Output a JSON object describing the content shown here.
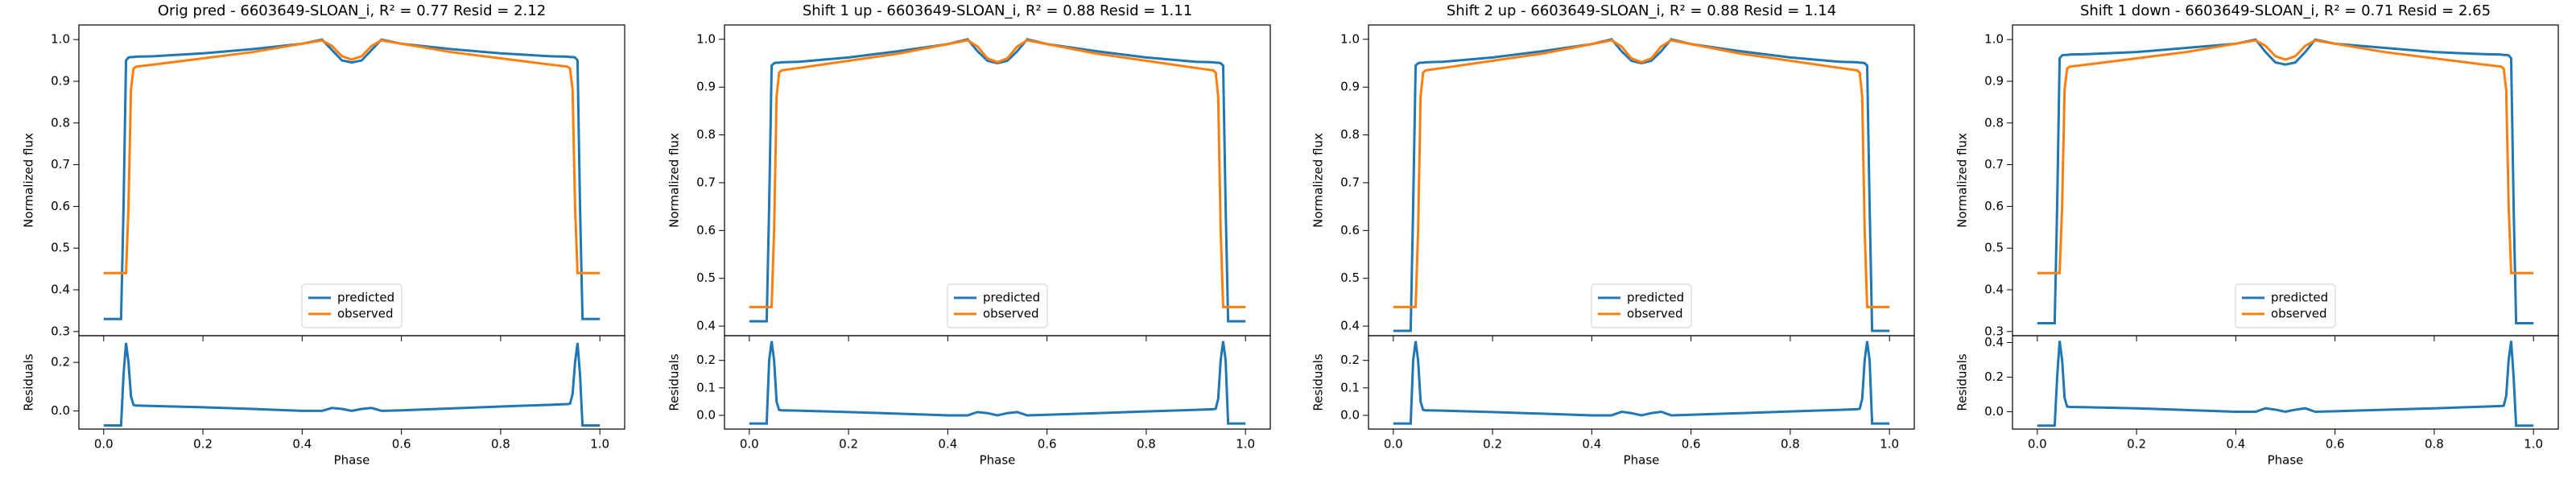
{
  "chart_data": [
    {
      "type": "line",
      "title": "Orig pred - 6603649-SLOAN_i, R² = 0.77 Resid = 2.12",
      "xlabel": "Phase",
      "x": [
        0,
        0.035,
        0.04,
        0.045,
        0.05,
        0.055,
        0.06,
        0.065,
        0.1,
        0.2,
        0.3,
        0.4,
        0.44,
        0.46,
        0.48,
        0.5,
        0.52,
        0.54,
        0.56,
        0.6,
        0.7,
        0.8,
        0.9,
        0.935,
        0.94,
        0.945,
        0.95,
        0.955,
        0.96,
        0.965,
        1.0
      ],
      "xlim": [
        -0.05,
        1.05
      ],
      "xticks": [
        {
          "value": 0,
          "label": "0.0"
        },
        {
          "value": 0.2,
          "label": "0.2"
        },
        {
          "value": 0.4,
          "label": "0.4"
        },
        {
          "value": 0.6,
          "label": "0.6"
        },
        {
          "value": 0.8,
          "label": "0.8"
        },
        {
          "value": 1,
          "label": "1.0"
        }
      ],
      "main": {
        "ylabel": "Normalized flux",
        "ylim": [
          0.29,
          1.035
        ],
        "legend": "lower center",
        "yticks": [
          {
            "value": 0.3,
            "label": "0.3"
          },
          {
            "value": 0.4,
            "label": "0.4"
          },
          {
            "value": 0.5,
            "label": "0.5"
          },
          {
            "value": 0.6,
            "label": "0.6"
          },
          {
            "value": 0.7,
            "label": "0.7"
          },
          {
            "value": 0.8,
            "label": "0.8"
          },
          {
            "value": 0.9,
            "label": "0.9"
          },
          {
            "value": 1,
            "label": "1.0"
          }
        ],
        "series": [
          {
            "name": "predicted",
            "color": "#1f77b4",
            "values": [
              0.33,
              0.33,
              0.6,
              0.95,
              0.957,
              0.958,
              0.958,
              0.959,
              0.96,
              0.967,
              0.977,
              0.99,
              1.0,
              0.975,
              0.95,
              0.945,
              0.95,
              0.975,
              1.0,
              0.99,
              0.977,
              0.967,
              0.96,
              0.959,
              0.958,
              0.958,
              0.957,
              0.95,
              0.6,
              0.33,
              0.33
            ]
          },
          {
            "name": "observed",
            "color": "#ff7f0e",
            "values": [
              0.44,
              0.44,
              0.44,
              0.44,
              0.6,
              0.88,
              0.93,
              0.935,
              0.94,
              0.955,
              0.97,
              0.99,
              0.998,
              0.985,
              0.96,
              0.952,
              0.96,
              0.985,
              0.998,
              0.99,
              0.97,
              0.955,
              0.94,
              0.935,
              0.93,
              0.88,
              0.6,
              0.44,
              0.44,
              0.44,
              0.44
            ]
          }
        ]
      },
      "resid": {
        "ylabel": "Residuals",
        "ylim": [
          -0.075,
          0.31
        ],
        "yticks": [
          {
            "value": 0,
            "label": "0.0"
          },
          {
            "value": 0.2,
            "label": "0.2"
          }
        ],
        "series": [
          {
            "color": "#1f77b4",
            "values": [
              -0.06,
              -0.06,
              0.15,
              0.28,
              0.2,
              0.06,
              0.025,
              0.022,
              0.02,
              0.015,
              0.008,
              0,
              0,
              0.012,
              0.008,
              0,
              0.008,
              0.012,
              0,
              0.002,
              0.01,
              0.018,
              0.025,
              0.028,
              0.03,
              0.07,
              0.2,
              0.28,
              0.15,
              -0.06,
              -0.06
            ]
          }
        ]
      }
    },
    {
      "type": "line",
      "title": "Shift 1 up - 6603649-SLOAN_i, R² = 0.88 Resid = 1.11",
      "xlabel": "Phase",
      "x": [
        0,
        0.035,
        0.04,
        0.045,
        0.05,
        0.055,
        0.06,
        0.065,
        0.1,
        0.2,
        0.3,
        0.4,
        0.44,
        0.46,
        0.48,
        0.5,
        0.52,
        0.54,
        0.56,
        0.6,
        0.7,
        0.8,
        0.9,
        0.935,
        0.94,
        0.945,
        0.95,
        0.955,
        0.96,
        0.965,
        1.0
      ],
      "xlim": [
        -0.05,
        1.05
      ],
      "xticks": [
        {
          "value": 0,
          "label": "0.0"
        },
        {
          "value": 0.2,
          "label": "0.2"
        },
        {
          "value": 0.4,
          "label": "0.4"
        },
        {
          "value": 0.6,
          "label": "0.6"
        },
        {
          "value": 0.8,
          "label": "0.8"
        },
        {
          "value": 1,
          "label": "1.0"
        }
      ],
      "main": {
        "ylabel": "Normalized flux",
        "ylim": [
          0.38,
          1.03
        ],
        "legend": "lower center",
        "yticks": [
          {
            "value": 0.4,
            "label": "0.4"
          },
          {
            "value": 0.5,
            "label": "0.5"
          },
          {
            "value": 0.6,
            "label": "0.6"
          },
          {
            "value": 0.7,
            "label": "0.7"
          },
          {
            "value": 0.8,
            "label": "0.8"
          },
          {
            "value": 0.9,
            "label": "0.9"
          },
          {
            "value": 1,
            "label": "1.0"
          }
        ],
        "series": [
          {
            "name": "predicted",
            "color": "#1f77b4",
            "values": [
              0.41,
              0.41,
              0.65,
              0.945,
              0.95,
              0.951,
              0.951,
              0.952,
              0.953,
              0.962,
              0.975,
              0.99,
              1.0,
              0.975,
              0.955,
              0.95,
              0.955,
              0.975,
              1.0,
              0.99,
              0.975,
              0.962,
              0.953,
              0.952,
              0.951,
              0.951,
              0.95,
              0.945,
              0.65,
              0.41,
              0.41
            ]
          },
          {
            "name": "observed",
            "color": "#ff7f0e",
            "values": [
              0.44,
              0.44,
              0.44,
              0.44,
              0.6,
              0.88,
              0.93,
              0.935,
              0.94,
              0.955,
              0.97,
              0.99,
              0.998,
              0.985,
              0.96,
              0.952,
              0.96,
              0.985,
              0.998,
              0.99,
              0.97,
              0.955,
              0.94,
              0.935,
              0.93,
              0.88,
              0.6,
              0.44,
              0.44,
              0.44,
              0.44
            ]
          }
        ]
      },
      "resid": {
        "ylabel": "Residuals",
        "ylim": [
          -0.05,
          0.29
        ],
        "yticks": [
          {
            "value": 0,
            "label": "0.0"
          },
          {
            "value": 0.1,
            "label": "0.1"
          },
          {
            "value": 0.2,
            "label": "0.2"
          }
        ],
        "series": [
          {
            "color": "#1f77b4",
            "values": [
              -0.03,
              -0.03,
              0.2,
              0.27,
              0.2,
              0.05,
              0.02,
              0.018,
              0.017,
              0.012,
              0.006,
              0,
              0,
              0.012,
              0.008,
              0,
              0.008,
              0.012,
              0,
              0.002,
              0.008,
              0.014,
              0.02,
              0.022,
              0.024,
              0.06,
              0.2,
              0.27,
              0.2,
              -0.03,
              -0.03
            ]
          }
        ]
      }
    },
    {
      "type": "line",
      "title": "Shift 2 up - 6603649-SLOAN_i, R² = 0.88 Resid = 1.14",
      "xlabel": "Phase",
      "x": [
        0,
        0.035,
        0.04,
        0.045,
        0.05,
        0.055,
        0.06,
        0.065,
        0.1,
        0.2,
        0.3,
        0.4,
        0.44,
        0.46,
        0.48,
        0.5,
        0.52,
        0.54,
        0.56,
        0.6,
        0.7,
        0.8,
        0.9,
        0.935,
        0.94,
        0.945,
        0.95,
        0.955,
        0.96,
        0.965,
        1.0
      ],
      "xlim": [
        -0.05,
        1.05
      ],
      "xticks": [
        {
          "value": 0,
          "label": "0.0"
        },
        {
          "value": 0.2,
          "label": "0.2"
        },
        {
          "value": 0.4,
          "label": "0.4"
        },
        {
          "value": 0.6,
          "label": "0.6"
        },
        {
          "value": 0.8,
          "label": "0.8"
        },
        {
          "value": 1,
          "label": "1.0"
        }
      ],
      "main": {
        "ylabel": "Normalized flux",
        "ylim": [
          0.38,
          1.03
        ],
        "legend": "lower center",
        "yticks": [
          {
            "value": 0.4,
            "label": "0.4"
          },
          {
            "value": 0.5,
            "label": "0.5"
          },
          {
            "value": 0.6,
            "label": "0.6"
          },
          {
            "value": 0.7,
            "label": "0.7"
          },
          {
            "value": 0.8,
            "label": "0.8"
          },
          {
            "value": 0.9,
            "label": "0.9"
          },
          {
            "value": 1,
            "label": "1.0"
          }
        ],
        "series": [
          {
            "name": "predicted",
            "color": "#1f77b4",
            "values": [
              0.39,
              0.39,
              0.65,
              0.945,
              0.95,
              0.951,
              0.951,
              0.952,
              0.953,
              0.962,
              0.975,
              0.99,
              1.0,
              0.975,
              0.955,
              0.95,
              0.955,
              0.975,
              1.0,
              0.99,
              0.975,
              0.962,
              0.953,
              0.952,
              0.951,
              0.951,
              0.95,
              0.945,
              0.65,
              0.39,
              0.39
            ]
          },
          {
            "name": "observed",
            "color": "#ff7f0e",
            "values": [
              0.44,
              0.44,
              0.44,
              0.44,
              0.6,
              0.88,
              0.93,
              0.935,
              0.94,
              0.955,
              0.97,
              0.99,
              0.998,
              0.985,
              0.96,
              0.952,
              0.96,
              0.985,
              0.998,
              0.99,
              0.97,
              0.955,
              0.94,
              0.935,
              0.93,
              0.88,
              0.6,
              0.44,
              0.44,
              0.44,
              0.44
            ]
          }
        ]
      },
      "resid": {
        "ylabel": "Residuals",
        "ylim": [
          -0.05,
          0.29
        ],
        "yticks": [
          {
            "value": 0,
            "label": "0.0"
          },
          {
            "value": 0.1,
            "label": "0.1"
          },
          {
            "value": 0.2,
            "label": "0.2"
          }
        ],
        "series": [
          {
            "color": "#1f77b4",
            "values": [
              -0.03,
              -0.03,
              0.2,
              0.27,
              0.2,
              0.05,
              0.02,
              0.018,
              0.017,
              0.012,
              0.006,
              0,
              0,
              0.013,
              0.008,
              0,
              0.008,
              0.013,
              0,
              0.002,
              0.008,
              0.014,
              0.02,
              0.022,
              0.024,
              0.06,
              0.2,
              0.27,
              0.2,
              -0.03,
              -0.03
            ]
          }
        ]
      }
    },
    {
      "type": "line",
      "title": "Shift 1 down - 6603649-SLOAN_i, R² = 0.71 Resid = 2.65",
      "xlabel": "Phase",
      "x": [
        0,
        0.035,
        0.04,
        0.045,
        0.05,
        0.055,
        0.06,
        0.065,
        0.1,
        0.2,
        0.3,
        0.4,
        0.44,
        0.46,
        0.48,
        0.5,
        0.52,
        0.54,
        0.56,
        0.6,
        0.7,
        0.8,
        0.9,
        0.935,
        0.94,
        0.945,
        0.95,
        0.955,
        0.96,
        0.965,
        1.0
      ],
      "xlim": [
        -0.05,
        1.05
      ],
      "xticks": [
        {
          "value": 0,
          "label": "0.0"
        },
        {
          "value": 0.2,
          "label": "0.2"
        },
        {
          "value": 0.4,
          "label": "0.4"
        },
        {
          "value": 0.6,
          "label": "0.6"
        },
        {
          "value": 0.8,
          "label": "0.8"
        },
        {
          "value": 1,
          "label": "1.0"
        }
      ],
      "main": {
        "ylabel": "Normalized flux",
        "ylim": [
          0.29,
          1.035
        ],
        "legend": "lower center",
        "yticks": [
          {
            "value": 0.3,
            "label": "0.3"
          },
          {
            "value": 0.4,
            "label": "0.4"
          },
          {
            "value": 0.5,
            "label": "0.5"
          },
          {
            "value": 0.6,
            "label": "0.6"
          },
          {
            "value": 0.7,
            "label": "0.7"
          },
          {
            "value": 0.8,
            "label": "0.8"
          },
          {
            "value": 0.9,
            "label": "0.9"
          },
          {
            "value": 1,
            "label": "1.0"
          }
        ],
        "series": [
          {
            "name": "predicted",
            "color": "#1f77b4",
            "values": [
              0.32,
              0.32,
              0.6,
              0.955,
              0.962,
              0.963,
              0.963,
              0.964,
              0.965,
              0.97,
              0.98,
              0.99,
              1.0,
              0.97,
              0.945,
              0.94,
              0.945,
              0.97,
              1.0,
              0.99,
              0.98,
              0.97,
              0.965,
              0.964,
              0.963,
              0.963,
              0.962,
              0.955,
              0.6,
              0.32,
              0.32
            ]
          },
          {
            "name": "observed",
            "color": "#ff7f0e",
            "values": [
              0.44,
              0.44,
              0.44,
              0.44,
              0.6,
              0.88,
              0.93,
              0.935,
              0.94,
              0.955,
              0.97,
              0.99,
              0.998,
              0.985,
              0.96,
              0.952,
              0.96,
              0.985,
              0.998,
              0.99,
              0.97,
              0.955,
              0.94,
              0.935,
              0.93,
              0.88,
              0.6,
              0.44,
              0.44,
              0.44,
              0.44
            ]
          }
        ]
      },
      "resid": {
        "ylabel": "Residuals",
        "ylim": [
          -0.1,
          0.44
        ],
        "yticks": [
          {
            "value": 0,
            "label": "0.0"
          },
          {
            "value": 0.2,
            "label": "0.2"
          },
          {
            "value": 0.4,
            "label": "0.4"
          }
        ],
        "series": [
          {
            "color": "#1f77b4",
            "values": [
              -0.08,
              -0.08,
              0.2,
              0.41,
              0.3,
              0.08,
              0.03,
              0.028,
              0.026,
              0.02,
              0.01,
              0,
              0,
              0.02,
              0.012,
              0,
              0.012,
              0.02,
              0,
              0.003,
              0.012,
              0.02,
              0.03,
              0.033,
              0.035,
              0.09,
              0.3,
              0.41,
              0.2,
              -0.08,
              -0.08
            ]
          }
        ]
      }
    }
  ]
}
